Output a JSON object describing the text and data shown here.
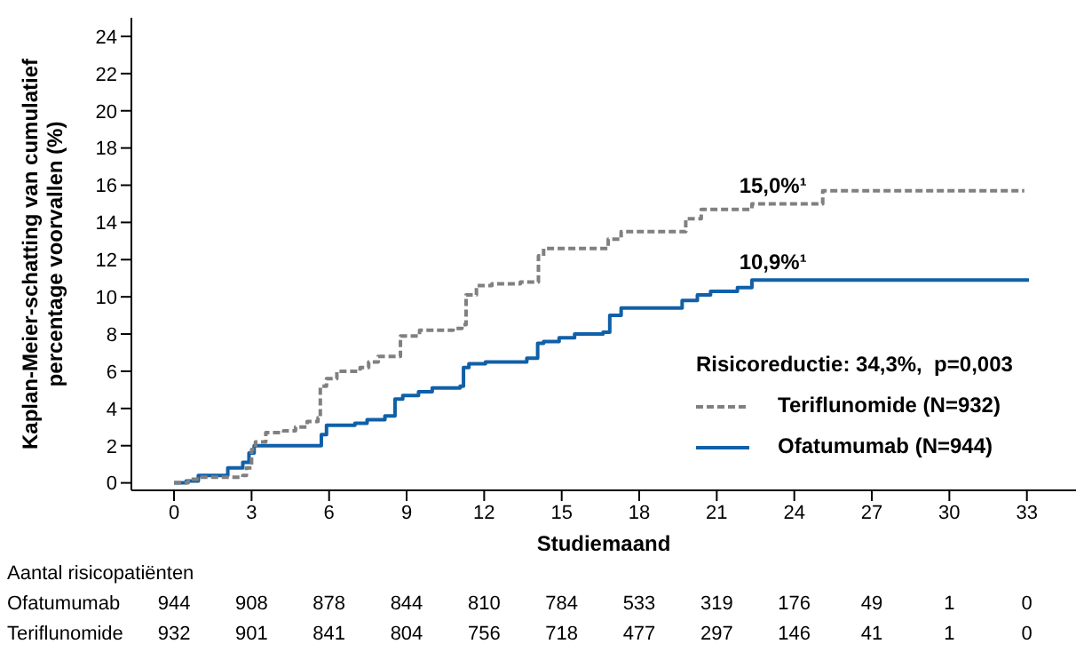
{
  "chart_data": {
    "type": "step",
    "xlabel": "Studiemaand",
    "ylabel": "Kaplan-Meier-schatting van cumulatief percentage voorvallen (%)",
    "legend_title": "Risicoreductie: 34,3%,  p=0,003",
    "legend": "bottom right",
    "marker": "none",
    "xlim": [
      -1.65,
      34.9
    ],
    "xticks": [
      0,
      3,
      6,
      9,
      12,
      15,
      18,
      21,
      24,
      27,
      30,
      33
    ],
    "ylim": [
      -0.4,
      25
    ],
    "yticks": [
      0,
      2,
      4,
      6,
      8,
      10,
      12,
      14,
      16,
      18,
      20,
      22,
      24
    ],
    "series": [
      {
        "name": "Teriflunomide (N=932)",
        "color": "#808080",
        "line_style": "dashed",
        "x": [
          0,
          0.55,
          1.0,
          2.66,
          2.8,
          3.0,
          3.15,
          3.55,
          4.24,
          4.7,
          5.15,
          5.57,
          5.66,
          5.9,
          6.3,
          7.2,
          7.53,
          7.9,
          8.76,
          9.5,
          10.8,
          11.14,
          11.3,
          11.7,
          12.3,
          13.4,
          13.9,
          14.1,
          14.3,
          16.8,
          17.3,
          19.8,
          20.4,
          22.36,
          25.1,
          32.9
        ],
        "values": [
          0,
          0.2,
          0.3,
          0.4,
          0.8,
          1.8,
          2.2,
          2.7,
          2.8,
          3.0,
          3.3,
          3.5,
          5.2,
          5.6,
          6.0,
          6.2,
          6.5,
          6.8,
          7.9,
          8.2,
          8.3,
          8.5,
          10.1,
          10.6,
          10.7,
          10.8,
          10.8,
          12.2,
          12.6,
          13.1,
          13.5,
          14.2,
          14.7,
          15.0,
          15.7,
          15.7
        ]
      },
      {
        "name": "Ofatumumab (N=944)",
        "color": "#1060a8",
        "line_style": "solid",
        "x": [
          0,
          0.47,
          0.94,
          2.08,
          2.66,
          2.9,
          3.1,
          5.7,
          5.9,
          7.0,
          7.47,
          8.16,
          8.55,
          8.85,
          9.46,
          9.99,
          11.07,
          11.2,
          11.41,
          12.05,
          13.65,
          14.07,
          14.3,
          14.9,
          15.5,
          16.6,
          16.86,
          17.3,
          19.66,
          20.25,
          20.76,
          21.8,
          22.36,
          33.08
        ],
        "values": [
          0,
          0.1,
          0.4,
          0.8,
          1.1,
          1.6,
          2.0,
          2.6,
          3.1,
          3.2,
          3.4,
          3.6,
          4.5,
          4.7,
          4.9,
          5.1,
          5.2,
          6.2,
          6.4,
          6.5,
          6.7,
          7.5,
          7.6,
          7.8,
          8.0,
          8.1,
          9.0,
          9.4,
          9.8,
          10.1,
          10.3,
          10.5,
          10.9,
          10.9
        ]
      }
    ],
    "annotations": [
      {
        "text": "15,0%¹",
        "x": 24,
        "y": 15.0
      },
      {
        "text": "10,9%¹",
        "x": 24,
        "y": 10.9
      },
      "Aantal risicopatiënten",
      "Ofatumumab\t944\t908\t878\t844\t810\t784\t533\t319\t176\t49\t1\t0",
      "Teriflunomide\t932\t901\t841\t804\t756\t718\t477\t297\t146\t41\t1\t0"
    ]
  }
}
